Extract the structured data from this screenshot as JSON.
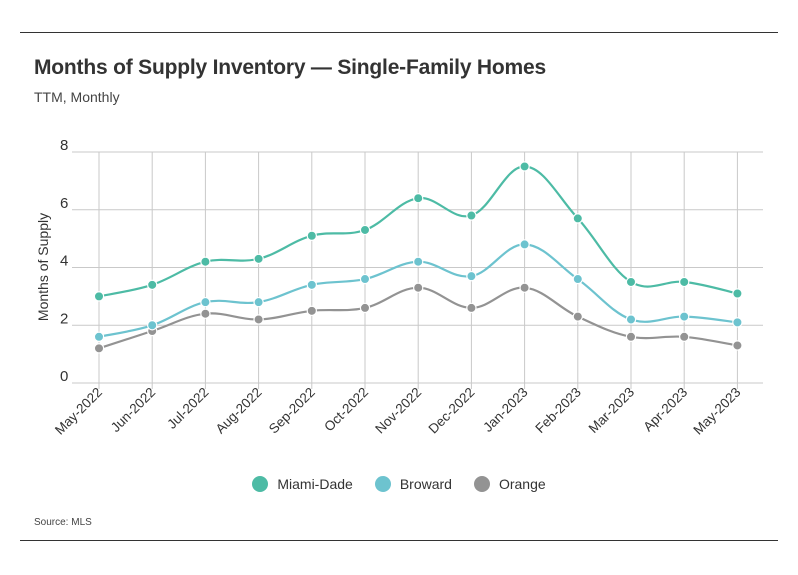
{
  "header": {
    "title": "Months of Supply Inventory — Single-Family Homes",
    "subtitle": "TTM, Monthly"
  },
  "footer": {
    "source": "Source: MLS"
  },
  "chart_data": {
    "type": "line",
    "title": "Months of Supply Inventory — Single-Family Homes",
    "subtitle": "TTM, Monthly",
    "xlabel": "",
    "ylabel": "Months of Supply",
    "ylim": [
      0,
      8
    ],
    "yticks": [
      0,
      2,
      4,
      6,
      8
    ],
    "grid": true,
    "legend_position": "bottom",
    "categories": [
      "May-2022",
      "Jun-2022",
      "Jul-2022",
      "Aug-2022",
      "Sep-2022",
      "Oct-2022",
      "Nov-2022",
      "Dec-2022",
      "Jan-2023",
      "Feb-2023",
      "Mar-2023",
      "Apr-2023",
      "May-2023"
    ],
    "series": [
      {
        "name": "Miami-Dade",
        "color": "#4dbba5",
        "values": [
          3.0,
          3.4,
          4.2,
          4.3,
          5.1,
          5.3,
          6.4,
          5.8,
          7.5,
          5.7,
          3.5,
          3.5,
          3.1
        ]
      },
      {
        "name": "Broward",
        "color": "#6dc3cf",
        "values": [
          1.6,
          2.0,
          2.8,
          2.8,
          3.4,
          3.6,
          4.2,
          3.7,
          4.8,
          3.6,
          2.2,
          2.3,
          2.1
        ]
      },
      {
        "name": "Orange",
        "color": "#939393",
        "values": [
          1.2,
          1.8,
          2.4,
          2.2,
          2.5,
          2.6,
          3.3,
          2.6,
          3.3,
          2.3,
          1.6,
          1.6,
          1.3
        ]
      }
    ]
  }
}
